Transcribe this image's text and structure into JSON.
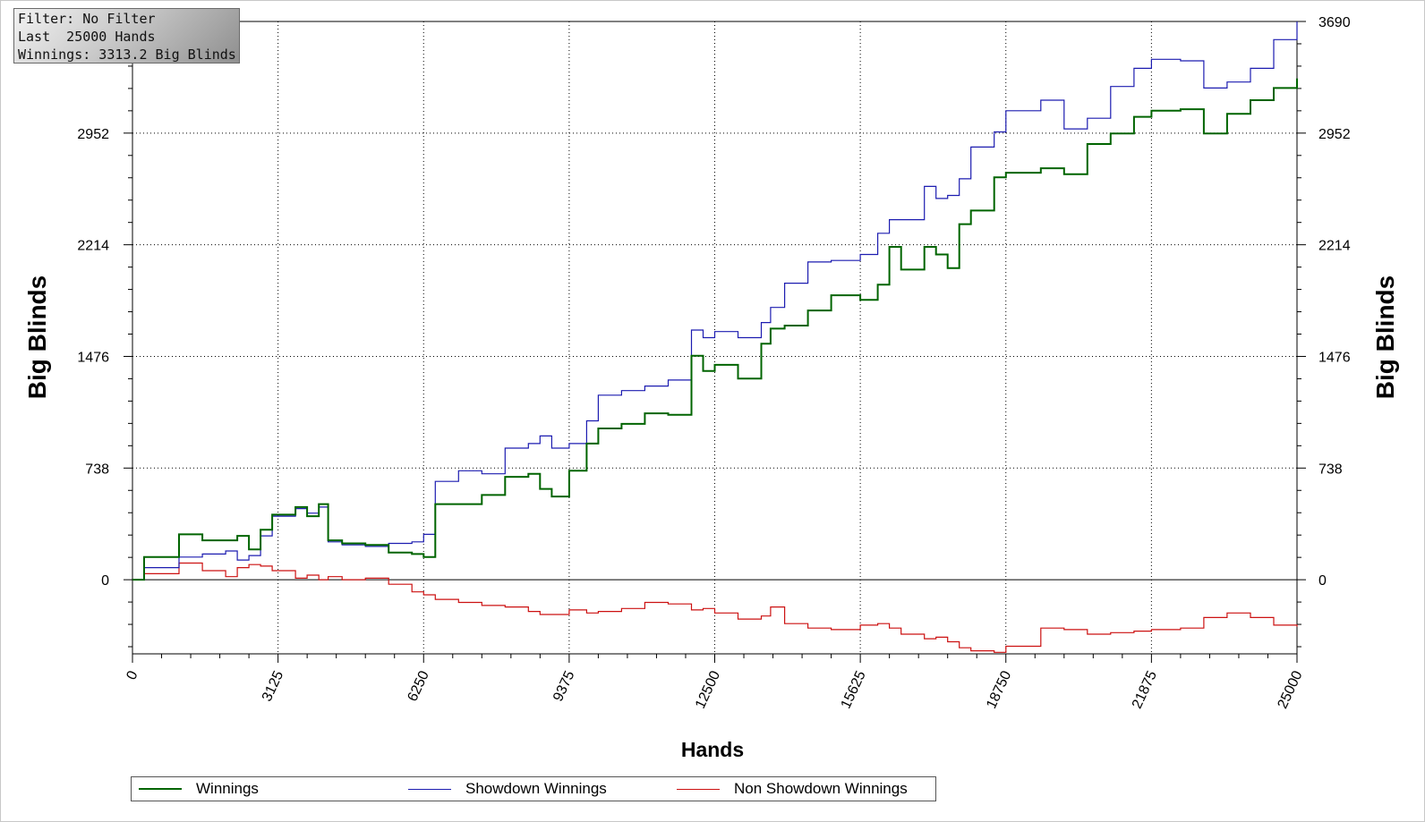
{
  "info": {
    "filter": "Filter: No Filter",
    "hands": "Last  25000 Hands",
    "winnings": "Winnings: 3313.2 Big Blinds"
  },
  "colors": {
    "winnings": "#006400",
    "showdown": "#1c1cb0",
    "non_showdown": "#cc1111",
    "grid": "#000000"
  },
  "chart_data": {
    "type": "line",
    "xlabel": "Hands",
    "ylabel": "Big Blinds",
    "xlim": [
      0,
      25000
    ],
    "ylim": [
      -490,
      3690
    ],
    "x_ticks": [
      "0",
      "3125",
      "6250",
      "9375",
      "12500",
      "15625",
      "18750",
      "21875",
      "25000"
    ],
    "y_ticks": [
      "0",
      "738",
      "1476",
      "2214",
      "2952",
      "3690"
    ],
    "grid": true,
    "legend_position": "bottom",
    "x": [
      0,
      250,
      1000,
      1500,
      2000,
      2250,
      2500,
      2750,
      3000,
      3500,
      3750,
      4000,
      4200,
      4500,
      5000,
      5500,
      6000,
      6250,
      6500,
      7000,
      7500,
      8000,
      8500,
      8750,
      9000,
      9375,
      9750,
      10000,
      10500,
      11000,
      11500,
      12000,
      12250,
      12500,
      13000,
      13500,
      13700,
      14000,
      14500,
      15000,
      15625,
      16000,
      16250,
      16500,
      17000,
      17250,
      17500,
      17750,
      18000,
      18500,
      18750,
      19500,
      20000,
      20500,
      21000,
      21500,
      21875,
      22500,
      23000,
      23500,
      24000,
      24500,
      25000
    ],
    "series": [
      {
        "name": "Winnings",
        "values": [
          0,
          150,
          300,
          260,
          260,
          290,
          200,
          330,
          430,
          480,
          420,
          500,
          260,
          240,
          230,
          180,
          170,
          150,
          500,
          500,
          560,
          680,
          700,
          600,
          550,
          720,
          900,
          1000,
          1030,
          1100,
          1090,
          1480,
          1380,
          1420,
          1330,
          1560,
          1660,
          1680,
          1780,
          1880,
          1850,
          1950,
          2200,
          2050,
          2200,
          2150,
          2060,
          2350,
          2440,
          2660,
          2690,
          2720,
          2680,
          2880,
          2950,
          3060,
          3100,
          3110,
          2950,
          3080,
          3170,
          3250,
          3313.2
        ]
      },
      {
        "name": "Showdown Winnings",
        "values": [
          0,
          80,
          150,
          170,
          190,
          130,
          160,
          290,
          420,
          470,
          440,
          480,
          250,
          230,
          220,
          240,
          250,
          300,
          650,
          720,
          700,
          870,
          900,
          950,
          870,
          900,
          1050,
          1220,
          1250,
          1280,
          1320,
          1650,
          1600,
          1640,
          1600,
          1700,
          1800,
          1960,
          2100,
          2110,
          2150,
          2290,
          2380,
          2380,
          2600,
          2520,
          2540,
          2650,
          2860,
          2960,
          3100,
          3170,
          2980,
          3050,
          3260,
          3380,
          3440,
          3430,
          3250,
          3290,
          3380,
          3570,
          3690
        ]
      },
      {
        "name": "Non Showdown Winnings",
        "values": [
          0,
          40,
          110,
          60,
          20,
          80,
          100,
          90,
          60,
          10,
          30,
          0,
          20,
          0,
          10,
          -30,
          -80,
          -100,
          -130,
          -150,
          -170,
          -180,
          -210,
          -230,
          -230,
          -200,
          -220,
          -210,
          -190,
          -150,
          -160,
          -200,
          -190,
          -220,
          -260,
          -240,
          -180,
          -290,
          -320,
          -330,
          -300,
          -290,
          -320,
          -360,
          -390,
          -380,
          -410,
          -450,
          -470,
          -480,
          -440,
          -320,
          -330,
          -360,
          -350,
          -340,
          -330,
          -320,
          -250,
          -220,
          -250,
          -300,
          -310
        ]
      }
    ]
  }
}
